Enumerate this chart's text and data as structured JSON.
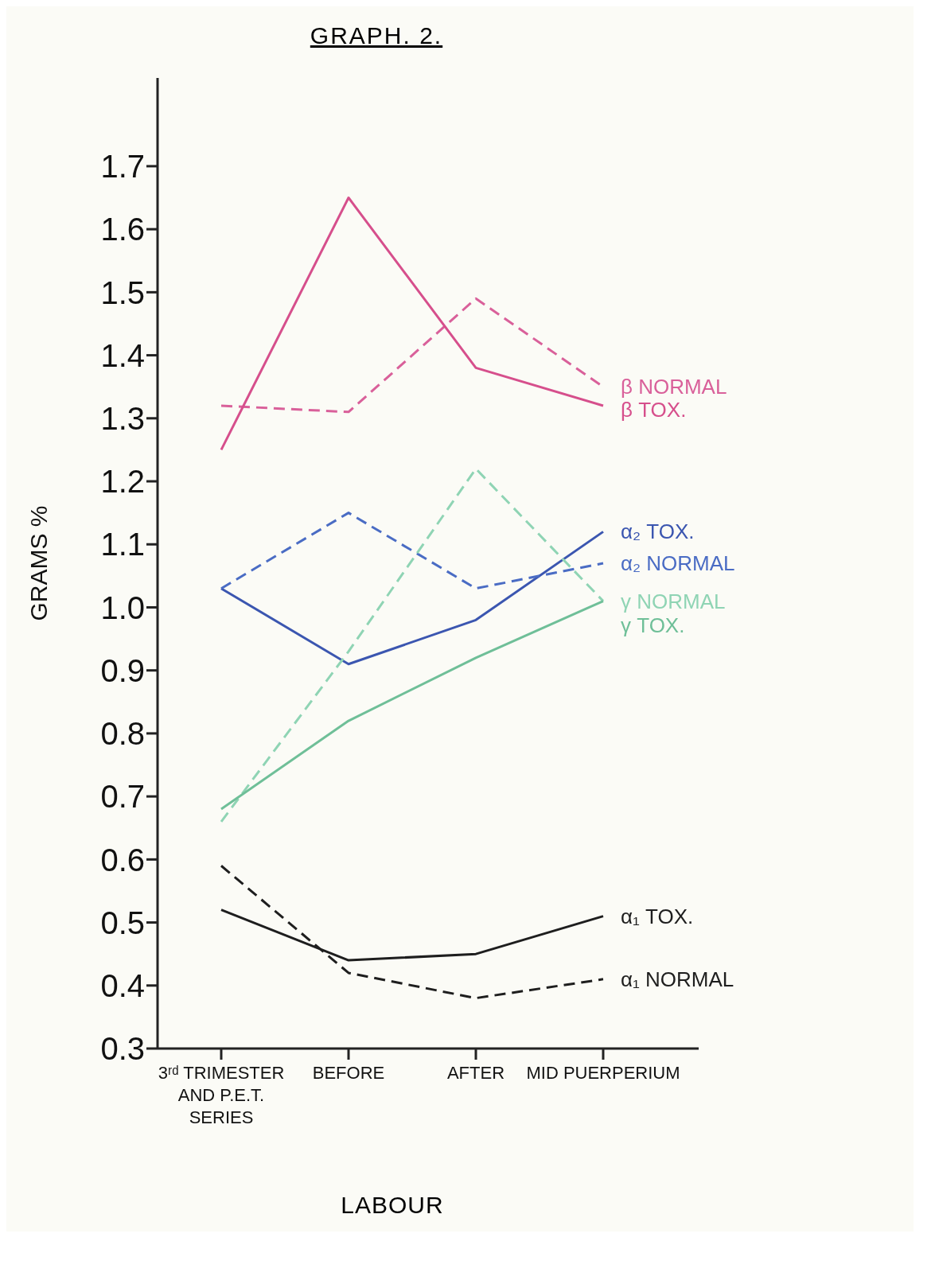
{
  "chart_data": {
    "type": "line",
    "title": "GRAPH. 2.",
    "ylabel": "GRAMS %",
    "categories": [
      "3ʳᵈ TRIMESTER AND P.E.T. SERIES",
      "BEFORE",
      "AFTER",
      "MID PUERPERIUM"
    ],
    "annotations": [
      "LABOUR"
    ],
    "ylim": [
      0.3,
      1.84
    ],
    "yticks": [
      0.3,
      0.4,
      0.5,
      0.6,
      0.7,
      0.8,
      0.9,
      {
        "value": 1,
        "label": "1.0"
      },
      1.1,
      1.2,
      1.3,
      1.4,
      1.5,
      1.6,
      1.7
    ],
    "marker": "none",
    "series": [
      {
        "name": "β NORMAL",
        "color": "#d9609a",
        "line_style": "dashed",
        "values": [
          1.32,
          1.31,
          1.49,
          1.35
        ]
      },
      {
        "name": "β TOX.",
        "color": "#d64f8c",
        "line_style": "solid",
        "values": [
          1.25,
          1.65,
          1.38,
          1.32
        ]
      },
      {
        "name": "α₂ TOX.",
        "color": "#3b56b0",
        "line_style": "solid",
        "values": [
          1.03,
          0.91,
          0.98,
          1.12
        ]
      },
      {
        "name": "α₂ NORMAL",
        "color": "#4a6cc4",
        "line_style": "dashed",
        "values": [
          1.03,
          1.15,
          1.03,
          1.07
        ]
      },
      {
        "name": "γ NORMAL",
        "color": "#8fd4b4",
        "line_style": "dashed",
        "values": [
          0.66,
          0.93,
          1.22,
          1.01
        ]
      },
      {
        "name": "γ TOX.",
        "color": "#6fbf98",
        "line_style": "solid",
        "values": [
          0.68,
          0.82,
          0.92,
          1.01
        ]
      },
      {
        "name": "α₁ TOX.",
        "color": "#1e1e1e",
        "line_style": "solid",
        "values": [
          0.52,
          0.44,
          0.45,
          0.51
        ]
      },
      {
        "name": "α₁ NORMAL",
        "color": "#1e1e1e",
        "line_style": "dashed",
        "values": [
          0.59,
          0.42,
          0.38,
          0.41
        ]
      }
    ]
  }
}
